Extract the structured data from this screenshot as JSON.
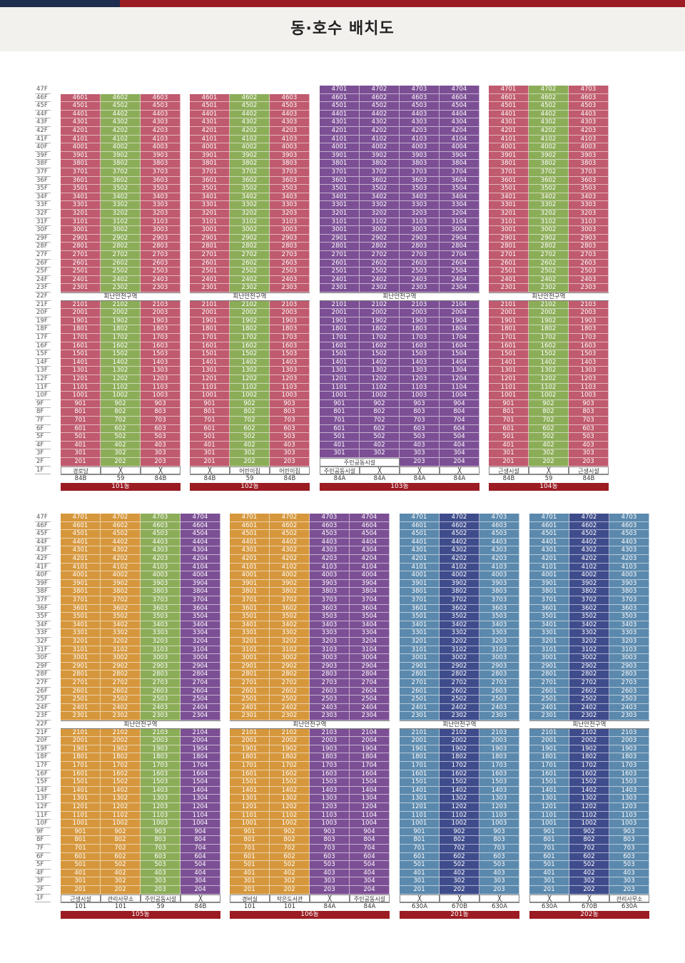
{
  "title": "동·호수 배치도",
  "refuge_label": "피난안전구역",
  "colors": {
    "pink": "#c05a6e",
    "green": "#8cad58",
    "purple": "#7c4f95",
    "orange": "#d6973c",
    "blue": "#5b89ad",
    "navy": "#3f4c8c",
    "brand_red": "#9b1c23",
    "brand_navy": "#1f2d4f"
  },
  "floors": [
    "47F",
    "46F",
    "45F",
    "44F",
    "43F",
    "42F",
    "41F",
    "40F",
    "39F",
    "38F",
    "37F",
    "36F",
    "35F",
    "34F",
    "33F",
    "32F",
    "31F",
    "30F",
    "29F",
    "28F",
    "27F",
    "26F",
    "25F",
    "24F",
    "23F",
    "22F",
    "21F",
    "20F",
    "19F",
    "18F",
    "17F",
    "16F",
    "15F",
    "14F",
    "13F",
    "12F",
    "11F",
    "10F",
    "9F",
    "8F",
    "7F",
    "6F",
    "5F",
    "4F",
    "3F",
    "2F",
    "1F"
  ],
  "buildings": [
    {
      "name": "101동",
      "top_floor": 46,
      "col_colors": [
        "pink",
        "green",
        "pink"
      ],
      "first_floor": [
        "경로당",
        null,
        null
      ],
      "types": [
        "84B",
        "59",
        "84B"
      ],
      "min_floor": 2
    },
    {
      "name": "102동",
      "top_floor": 46,
      "col_colors": [
        "pink",
        "green",
        "pink"
      ],
      "first_floor": [
        null,
        "어린이집",
        "어린이집"
      ],
      "types": [
        "84B",
        "59",
        "84B"
      ],
      "min_floor": 2
    },
    {
      "name": "103동",
      "top_floor": 47,
      "col_colors": [
        "purple",
        "purple",
        "purple",
        "purple"
      ],
      "first_floor": [
        "주민공동시설",
        null,
        null,
        null
      ],
      "types": [
        "84A",
        "84A",
        "84A",
        "84A"
      ],
      "min_floor": 3,
      "floor2_label": "주민공동시설",
      "floor2_extra": [
        "203",
        "204"
      ]
    },
    {
      "name": "104동",
      "top_floor": 47,
      "col_colors": [
        "pink",
        "green",
        "pink"
      ],
      "first_floor": [
        "근생시설",
        null,
        "근생시설"
      ],
      "types": [
        "84B",
        "59",
        "84B"
      ],
      "min_floor": 2
    },
    {
      "name": "105동",
      "top_floor": 47,
      "col_colors": [
        "orange",
        "orange",
        "green",
        "purple"
      ],
      "first_floor": [
        "근생시설",
        "관리사무소",
        "주민공동시설",
        null
      ],
      "types": [
        "101",
        "101",
        "59",
        "84B"
      ],
      "min_floor": 2
    },
    {
      "name": "106동",
      "top_floor": 47,
      "col_colors": [
        "orange",
        "orange",
        "purple",
        "purple"
      ],
      "first_floor": [
        "경비실",
        "작은도서관",
        null,
        "주민공동시설"
      ],
      "types": [
        "101",
        "101",
        "84A",
        "84A"
      ],
      "min_floor": 2
    },
    {
      "name": "201동",
      "top_floor": 47,
      "col_colors": [
        "blue",
        "navy",
        "blue"
      ],
      "first_floor": [
        null,
        null,
        null
      ],
      "types": [
        "630A",
        "670B",
        "630A"
      ],
      "min_floor": 2
    },
    {
      "name": "202동",
      "top_floor": 47,
      "col_colors": [
        "blue",
        "navy",
        "blue"
      ],
      "first_floor": [
        null,
        null,
        "관리사무소"
      ],
      "types": [
        "630A",
        "670B",
        "630A"
      ],
      "min_floor": 2
    }
  ]
}
